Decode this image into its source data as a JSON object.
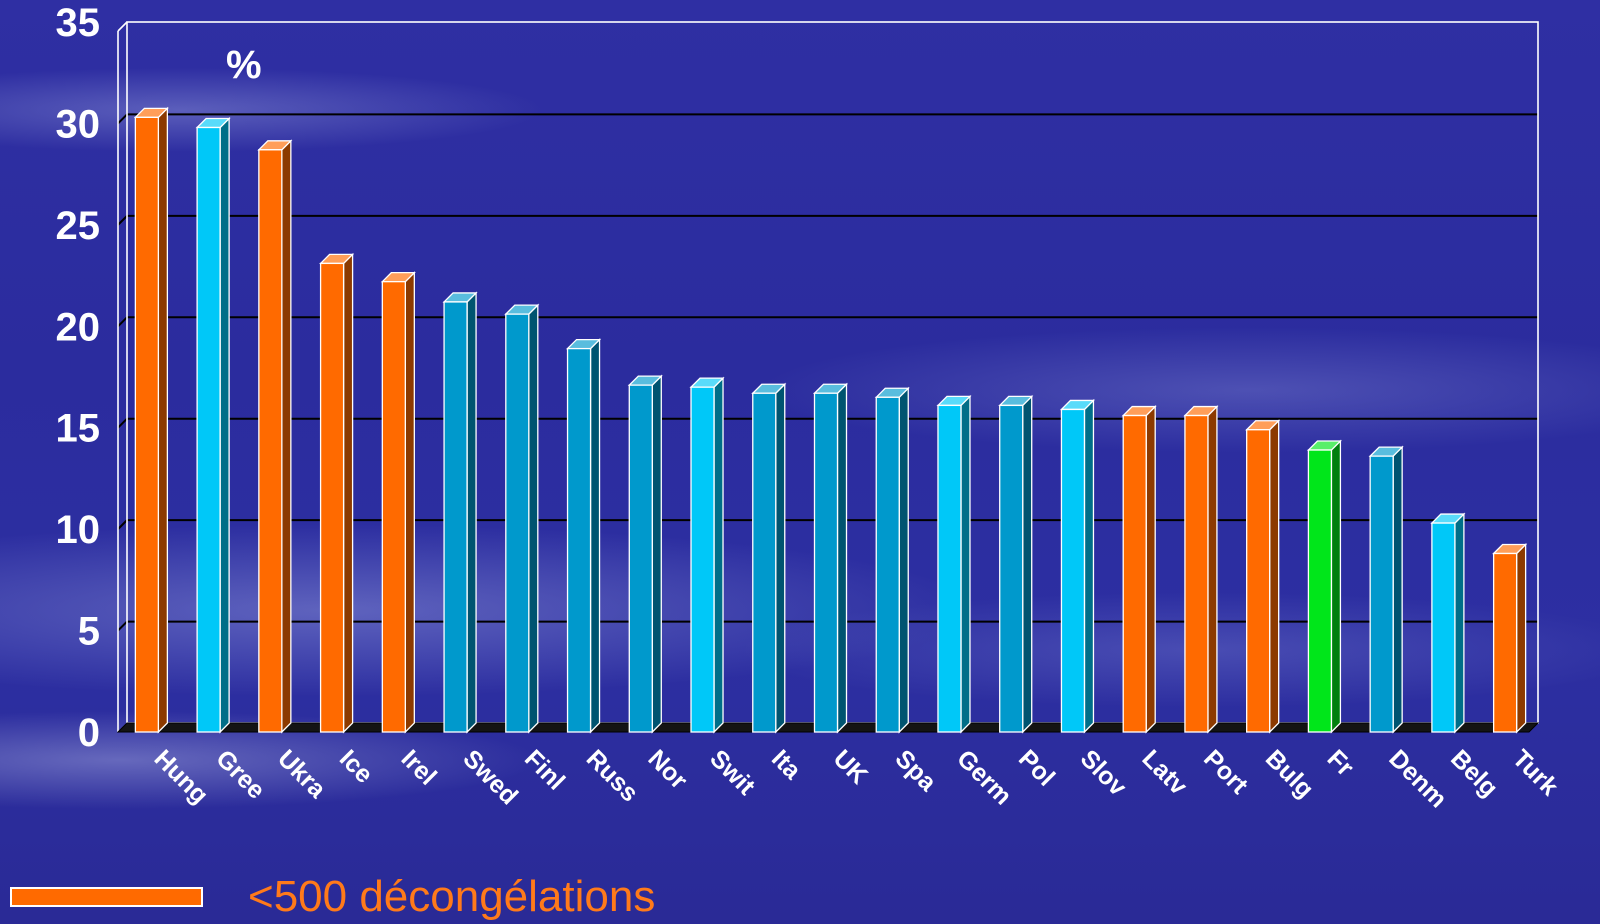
{
  "chart_data": {
    "type": "bar",
    "title": "",
    "xlabel": "",
    "ylabel": "%",
    "ylim": [
      0,
      35
    ],
    "yticks": [
      0,
      5,
      10,
      15,
      20,
      25,
      30,
      35
    ],
    "grid": true,
    "categories": [
      "Hung",
      "Gree",
      "Ukra",
      "Ice",
      "Irel",
      "Swed",
      "Finl",
      "Russ",
      "Nor",
      "Swit",
      "Ita",
      "UK",
      "Spa",
      "Germ",
      "Pol",
      "Slov",
      "Latv",
      "Port",
      "Bulg",
      "Fr",
      "Denm",
      "Belg",
      "Turk"
    ],
    "values": [
      30.3,
      29.8,
      28.7,
      23.1,
      22.2,
      21.2,
      20.6,
      18.9,
      17.1,
      17.0,
      16.7,
      16.7,
      16.5,
      16.1,
      16.1,
      15.9,
      15.6,
      15.6,
      14.9,
      13.9,
      13.6,
      10.3,
      8.8
    ],
    "bar_colors": [
      "#ff6a00",
      "#00c8f8",
      "#ff6a00",
      "#ff6a00",
      "#ff6a00",
      "#0099cc",
      "#0099cc",
      "#0099cc",
      "#0099cc",
      "#00c8f8",
      "#0099cc",
      "#0099cc",
      "#0099cc",
      "#00c8f8",
      "#0099cc",
      "#00c8f8",
      "#ff6a00",
      "#ff6a00",
      "#ff6a00",
      "#00e61a",
      "#0099cc",
      "#00c8f8",
      "#ff6a00"
    ],
    "legend": [
      {
        "label": "<500 décongélations",
        "color": "#ff6a00"
      }
    ]
  },
  "colors": {
    "gridline": "#000000",
    "frame": "#ffffff",
    "orange": "#ff6a00",
    "cyan": "#00c8f8",
    "teal": "#0099cc",
    "green": "#00e61a"
  }
}
